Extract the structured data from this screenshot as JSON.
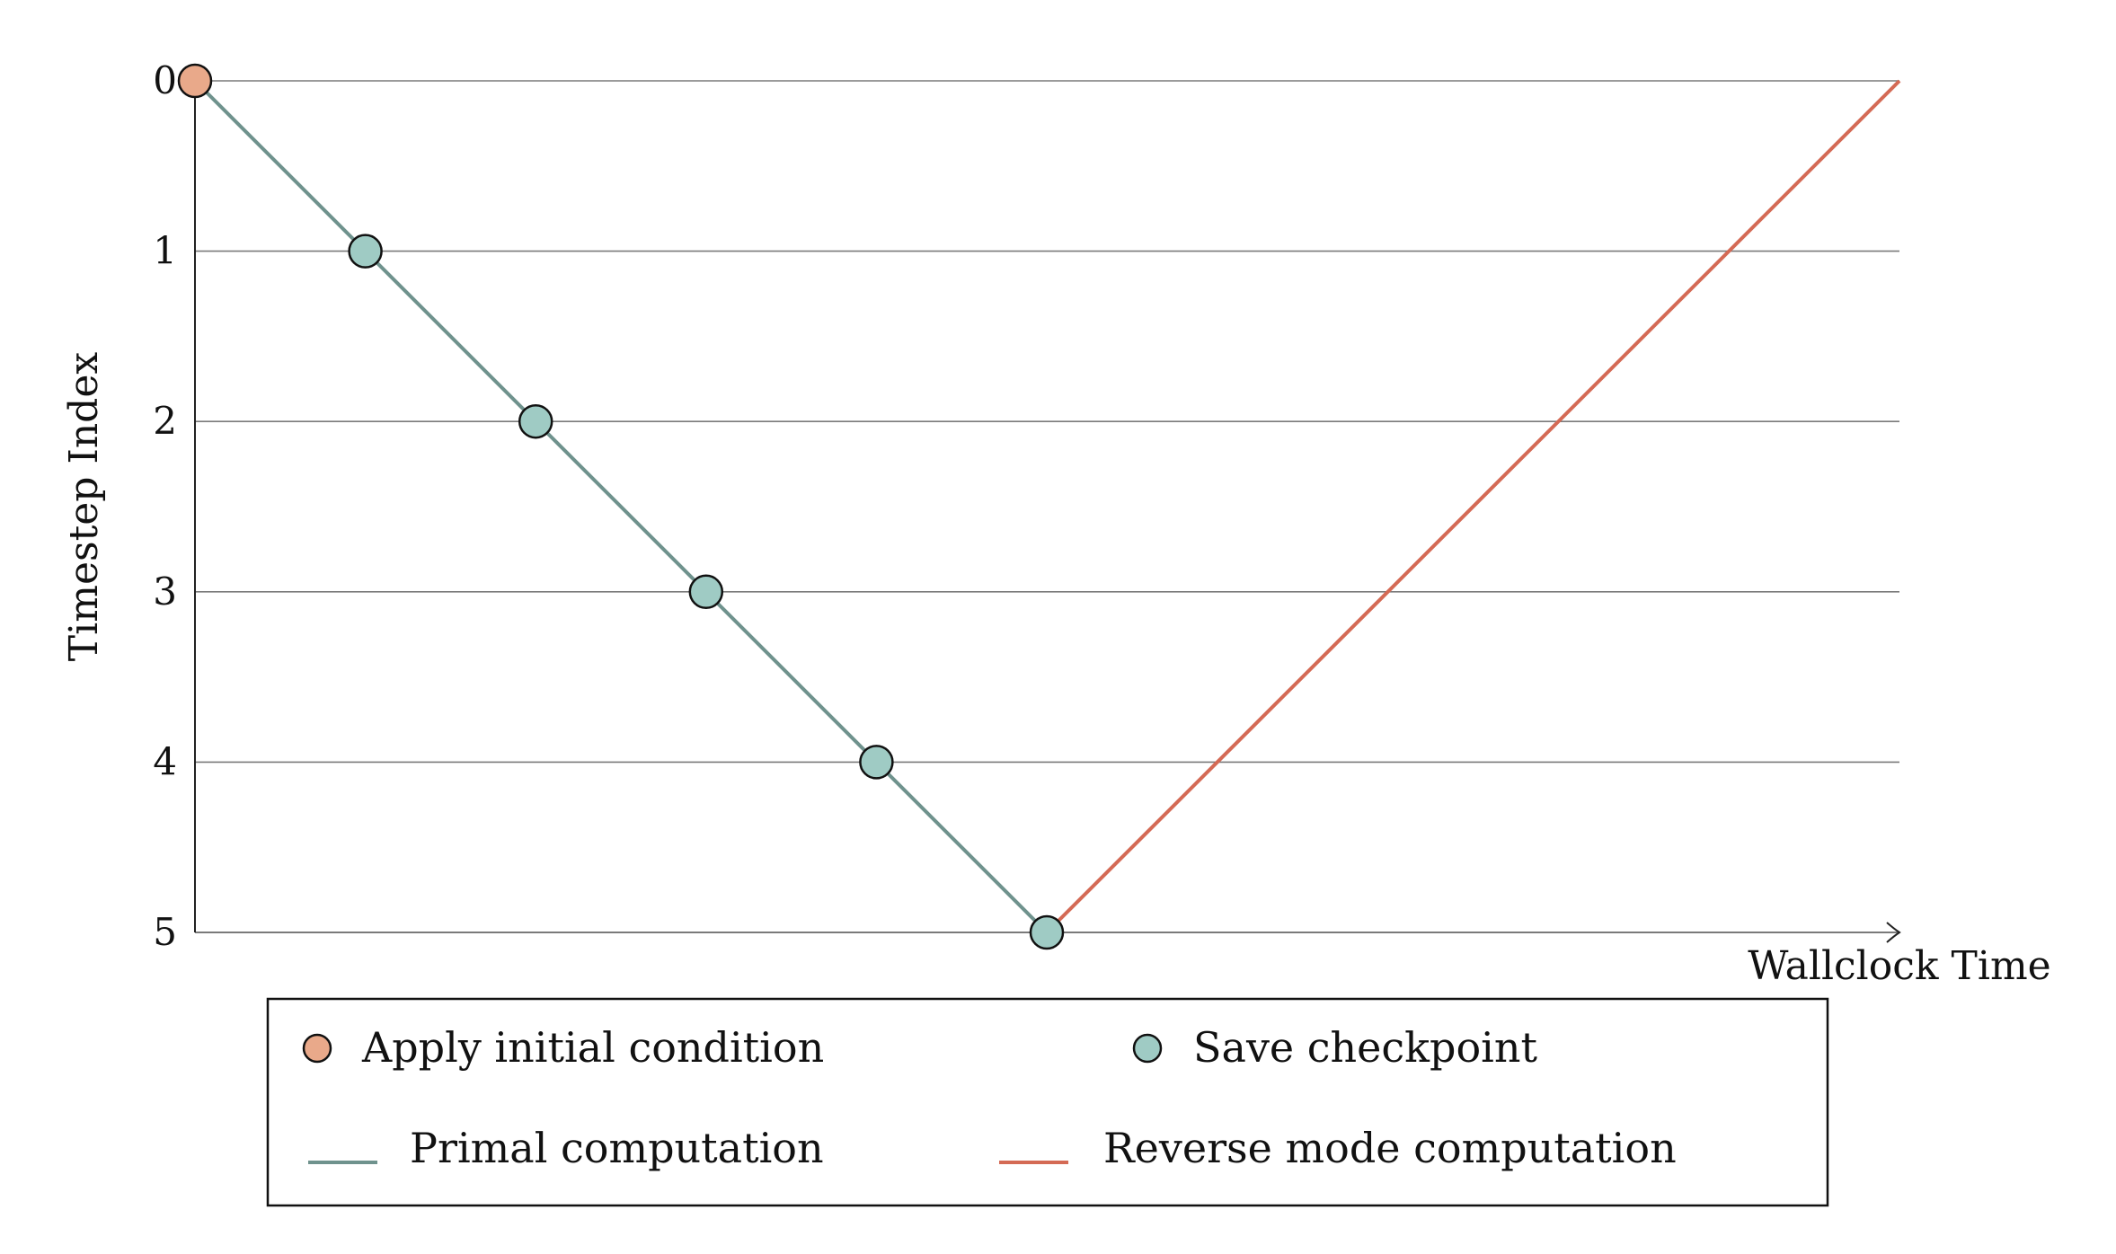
{
  "diagram": {
    "y_axis": {
      "label": "Timestep Index",
      "ticks": [
        "0",
        "1",
        "2",
        "3",
        "4",
        "5"
      ]
    },
    "x_axis": {
      "label": "Wallclock Time"
    },
    "primal_path": {
      "timesteps": [
        0,
        1,
        2,
        3,
        4,
        5
      ],
      "color": "#6f928d"
    },
    "reverse_path": {
      "from_timestep": 5,
      "to_timestep": 0,
      "color": "#d46a55"
    },
    "markers": [
      {
        "timestep": 0,
        "kind": "initial"
      },
      {
        "timestep": 1,
        "kind": "checkpoint"
      },
      {
        "timestep": 2,
        "kind": "checkpoint"
      },
      {
        "timestep": 3,
        "kind": "checkpoint"
      },
      {
        "timestep": 4,
        "kind": "checkpoint"
      },
      {
        "timestep": 5,
        "kind": "checkpoint"
      }
    ],
    "colors": {
      "initial_marker": "#e9a98a",
      "checkpoint_marker": "#9fcbc4",
      "gridline": "#7a7a7a",
      "marker_stroke": "#111111"
    },
    "legend": {
      "initial": "Apply initial condition",
      "checkpoint": "Save checkpoint",
      "primal": "Primal computation",
      "reverse": "Reverse mode computation"
    }
  }
}
